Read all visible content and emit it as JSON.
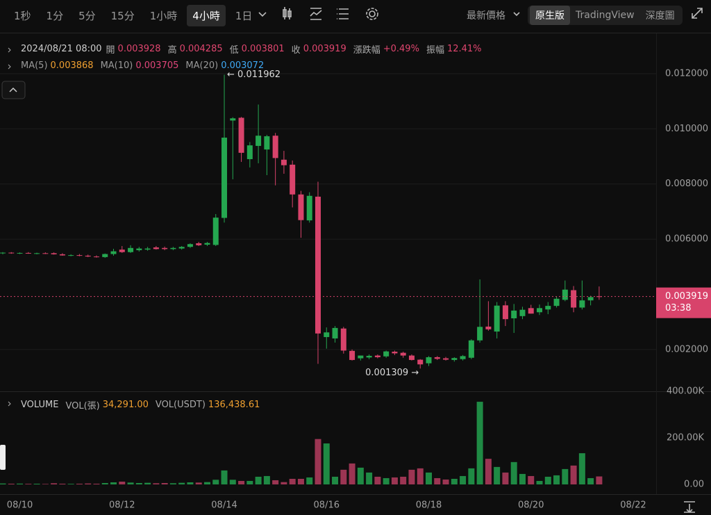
{
  "toolbar": {
    "intervals": [
      "1秒",
      "1分",
      "5分",
      "15分",
      "1小時",
      "4小時",
      "1日"
    ],
    "active_interval": 5,
    "price_mode": "最新價格",
    "views": [
      "原生版",
      "TradingView",
      "深度圖"
    ],
    "active_view": 0
  },
  "ohlc_row": {
    "datetime": "2024/08/21 08:00",
    "items": [
      {
        "label": "開",
        "value": "0.003928"
      },
      {
        "label": "高",
        "value": "0.004285"
      },
      {
        "label": "低",
        "value": "0.003801"
      },
      {
        "label": "收",
        "value": "0.003919"
      },
      {
        "label": "漲跌幅",
        "value": "+0.49%"
      },
      {
        "label": "振幅",
        "value": "12.41%"
      }
    ],
    "value_color": "#e0466f"
  },
  "ma_row": [
    {
      "name": "MA(5)",
      "value": "0.003868",
      "color": "#f0a030"
    },
    {
      "name": "MA(10)",
      "value": "0.003705",
      "color": "#e0467a"
    },
    {
      "name": "MA(20)",
      "value": "0.003072",
      "color": "#3fa9f5"
    }
  ],
  "chart_data": [
    {
      "type": "candlestick",
      "colors": {
        "up": "#25a750",
        "down": "#d8436b"
      },
      "open": [
        0.00549,
        0.00551,
        0.00549,
        0.0055,
        0.00548,
        0.00549,
        0.00549,
        0.00545,
        0.00541,
        0.00542,
        0.0054,
        0.00537,
        0.00535,
        0.00546,
        0.00562,
        0.00553,
        0.0056,
        0.00562,
        0.0057,
        0.00568,
        0.00564,
        0.00566,
        0.00572,
        0.00585,
        0.0058,
        0.00579,
        0.00677,
        0.0103,
        0.0104,
        0.0089,
        0.00938,
        0.00925,
        0.00975,
        0.00888,
        0.0087,
        0.00762,
        0.00668,
        0.00754,
        0.00245,
        0.0024,
        0.00276,
        0.00195,
        0.00168,
        0.00171,
        0.00178,
        0.00175,
        0.00192,
        0.00188,
        0.00178,
        0.00163,
        0.0015,
        0.00172,
        0.00168,
        0.00162,
        0.00165,
        0.0017,
        0.00233,
        0.00283,
        0.00265,
        0.0036,
        0.00313,
        0.00321,
        0.0035,
        0.00335,
        0.00345,
        0.00358,
        0.0038,
        0.00415,
        0.00352,
        0.00378,
        0.003928,
        null,
        null,
        null,
        null,
        null
      ],
      "high": [
        0.00553,
        0.00553,
        0.00552,
        0.00553,
        0.00551,
        0.00552,
        0.00552,
        0.00549,
        0.00545,
        0.00546,
        0.00544,
        0.00541,
        0.00548,
        0.00565,
        0.00575,
        0.00578,
        0.00572,
        0.00572,
        0.00575,
        0.00573,
        0.00572,
        0.00575,
        0.00585,
        0.0059,
        0.0059,
        0.00691,
        0.011962,
        0.01042,
        0.01043,
        0.00952,
        0.01088,
        0.00978,
        0.00985,
        0.0092,
        0.00885,
        0.00775,
        0.0077,
        0.00808,
        0.0028,
        0.00285,
        0.00282,
        0.002,
        0.00178,
        0.00182,
        0.00182,
        0.00196,
        0.00196,
        0.00192,
        0.00182,
        0.00165,
        0.00176,
        0.00176,
        0.00173,
        0.00172,
        0.0018,
        0.00237,
        0.00454,
        0.00375,
        0.00372,
        0.00375,
        0.00365,
        0.00355,
        0.00362,
        0.00363,
        0.00372,
        0.00392,
        0.0045,
        0.0043,
        0.0045,
        0.00395,
        0.004285,
        null,
        null,
        null,
        null,
        null
      ],
      "low": [
        0.00545,
        0.00547,
        0.00546,
        0.00547,
        0.00545,
        0.00546,
        0.00544,
        0.0054,
        0.00538,
        0.00538,
        0.00535,
        0.00533,
        0.00532,
        0.0054,
        0.0055,
        0.0055,
        0.00555,
        0.00558,
        0.00562,
        0.0056,
        0.0056,
        0.00562,
        0.00568,
        0.00575,
        0.00575,
        0.00575,
        0.0066,
        0.00817,
        0.0088,
        0.0086,
        0.00875,
        0.00832,
        0.00795,
        0.00837,
        0.00715,
        0.00605,
        0.0066,
        0.00148,
        0.00203,
        0.00225,
        0.00185,
        0.0016,
        0.0016,
        0.00165,
        0.00168,
        0.0017,
        0.0018,
        0.0017,
        0.0016,
        0.001309,
        0.0014,
        0.00162,
        0.0016,
        0.00156,
        0.0016,
        0.00165,
        0.00225,
        0.00268,
        0.0024,
        0.00285,
        0.0026,
        0.0031,
        0.0033,
        0.00325,
        0.00328,
        0.00352,
        0.00375,
        0.00335,
        0.00345,
        0.0036,
        0.003801,
        null,
        null,
        null,
        null,
        null
      ],
      "close": [
        0.00551,
        0.00549,
        0.0055,
        0.00548,
        0.00549,
        0.00547,
        0.00545,
        0.00541,
        0.00542,
        0.0054,
        0.00537,
        0.00535,
        0.00546,
        0.00556,
        0.00553,
        0.00568,
        0.00566,
        0.00566,
        0.00564,
        0.00564,
        0.00568,
        0.00572,
        0.00582,
        0.00578,
        0.00586,
        0.00678,
        0.00968,
        0.01038,
        0.00913,
        0.0094,
        0.00975,
        0.00973,
        0.00894,
        0.00868,
        0.00762,
        0.00669,
        0.00757,
        0.00258,
        0.00262,
        0.00278,
        0.00196,
        0.00162,
        0.00178,
        0.00177,
        0.00172,
        0.00193,
        0.00186,
        0.00178,
        0.00162,
        0.00146,
        0.00172,
        0.00166,
        0.00163,
        0.00169,
        0.00176,
        0.00233,
        0.00282,
        0.00273,
        0.00359,
        0.0031,
        0.00341,
        0.00344,
        0.0033,
        0.0035,
        0.00358,
        0.00384,
        0.00417,
        0.00352,
        0.00378,
        0.0039,
        0.003919,
        null,
        null,
        null,
        null,
        null
      ],
      "high_label": "← 0.011962",
      "low_label": "0.001309 →",
      "price_tag": {
        "label": "0.003919",
        "countdown": "03:38"
      },
      "ylim": [
        0.00056,
        0.01346
      ],
      "yticks": [
        {
          "value": 0.002,
          "label": "0.002000"
        },
        {
          "value": 0.006,
          "label": "0.006000"
        },
        {
          "value": 0.008,
          "label": "0.008000"
        },
        {
          "value": 0.01,
          "label": "0.010000"
        },
        {
          "value": 0.012,
          "label": "0.012000"
        }
      ],
      "grid": true
    },
    {
      "type": "bar",
      "title": "VOLUME",
      "categories": [
        null,
        null,
        "08/10",
        null,
        null,
        null,
        null,
        null,
        null,
        null,
        null,
        null,
        null,
        null,
        "08/12",
        null,
        null,
        null,
        null,
        null,
        null,
        null,
        null,
        null,
        null,
        null,
        "08/14",
        null,
        null,
        null,
        null,
        null,
        null,
        null,
        null,
        null,
        null,
        null,
        "08/16",
        null,
        null,
        null,
        null,
        null,
        null,
        null,
        null,
        null,
        null,
        null,
        "08/18",
        null,
        null,
        null,
        null,
        null,
        null,
        null,
        null,
        null,
        null,
        null,
        "08/20",
        null,
        null,
        null,
        null,
        null,
        null,
        null,
        null,
        null,
        null,
        null,
        "08/22",
        null
      ],
      "series": [
        {
          "name": "VOL(張)",
          "colors": {
            "up": "#1f8a44",
            "down": "#9c3553"
          },
          "values": [
            4000,
            3000,
            3500,
            2500,
            3000,
            2000,
            5000,
            3000,
            2500,
            3000,
            4000,
            3000,
            6000,
            9000,
            12000,
            8000,
            6000,
            7000,
            5000,
            6000,
            5000,
            7000,
            9000,
            8000,
            10000,
            20000,
            60000,
            20000,
            15000,
            15000,
            33000,
            36000,
            18000,
            10000,
            24000,
            24000,
            30000,
            195000,
            176000,
            33000,
            63000,
            90000,
            72000,
            51000,
            33000,
            27000,
            30000,
            33000,
            63000,
            69000,
            51000,
            27000,
            21000,
            24000,
            36000,
            69000,
            355000,
            110000,
            75000,
            51000,
            96000,
            45000,
            36000,
            15000,
            33000,
            39000,
            66000,
            81000,
            134000,
            27000,
            34291,
            null,
            null,
            null,
            null,
            null
          ],
          "last_label": "34,291.00"
        }
      ],
      "usdt": {
        "name": "VOL(USDT)",
        "label": "136,438.61"
      },
      "legend_value_color": "#f0a030",
      "ylim": [
        0,
        400000
      ],
      "yticks": [
        {
          "value": 0,
          "label": "0.00"
        },
        {
          "value": 200000,
          "label": "200.00K"
        },
        {
          "value": 400000,
          "label": "400.00K"
        }
      ]
    }
  ]
}
